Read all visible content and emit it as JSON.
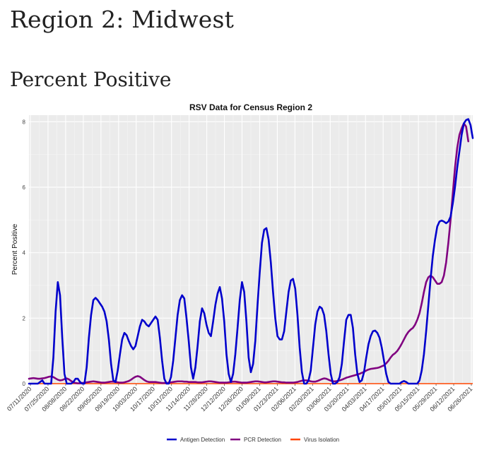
{
  "page": {
    "heading": "Region 2: Midwest",
    "subheading": "Percent Positive"
  },
  "chart_data": {
    "type": "line",
    "title": "RSV Data for Census Region 2",
    "xlabel": "",
    "ylabel": "Percent Positive",
    "ylim": [
      0,
      8.2
    ],
    "yticks": [
      0,
      2,
      4,
      6,
      8
    ],
    "grid": true,
    "legend_position": "bottom",
    "x_tick_labels": [
      "07/11/2020",
      "07/25/2020",
      "08/08/2020",
      "08/22/2020",
      "09/05/2020",
      "09/19/2020",
      "10/03/2020",
      "10/17/2020",
      "10/31/2020",
      "11/14/2020",
      "11/28/2020",
      "12/12/2020",
      "12/26/2020",
      "01/09/2021",
      "01/23/2021",
      "02/06/2021",
      "02/20/2021",
      "03/06/2021",
      "03/20/2021",
      "04/03/2021",
      "04/17/2021",
      "05/01/2021",
      "05/15/2021",
      "05/29/2021",
      "06/12/2021",
      "06/26/2021"
    ],
    "series": [
      {
        "name": "Antigen Detection",
        "color": "#0000cc",
        "values": [
          0,
          0,
          0,
          0,
          0,
          0.05,
          0.1,
          0,
          0,
          0,
          0,
          0.8,
          2.2,
          3.1,
          2.7,
          1.4,
          0.3,
          0,
          0,
          0,
          0.05,
          0.15,
          0.15,
          0.05,
          0,
          0,
          0.5,
          1.4,
          2.1,
          2.55,
          2.62,
          2.55,
          2.45,
          2.35,
          2.2,
          1.9,
          1.35,
          0.6,
          0.1,
          0.05,
          0.4,
          0.9,
          1.35,
          1.55,
          1.48,
          1.3,
          1.15,
          1.05,
          1.15,
          1.45,
          1.75,
          1.95,
          1.9,
          1.8,
          1.75,
          1.85,
          1.95,
          2.05,
          1.95,
          1.4,
          0.7,
          0.15,
          0,
          0,
          0.2,
          0.7,
          1.4,
          2.1,
          2.55,
          2.7,
          2.6,
          2.0,
          1.3,
          0.5,
          0.15,
          0.5,
          1.15,
          1.9,
          2.3,
          2.15,
          1.8,
          1.55,
          1.45,
          1.9,
          2.4,
          2.75,
          2.95,
          2.6,
          1.9,
          0.9,
          0.3,
          0.05,
          0.3,
          0.9,
          1.7,
          2.55,
          3.1,
          2.8,
          1.9,
          0.8,
          0.35,
          0.6,
          1.3,
          2.4,
          3.4,
          4.3,
          4.7,
          4.75,
          4.4,
          3.7,
          2.8,
          2.0,
          1.45,
          1.35,
          1.35,
          1.6,
          2.2,
          2.8,
          3.15,
          3.2,
          2.9,
          2.1,
          1.1,
          0.35,
          0,
          0,
          0.1,
          0.4,
          1.1,
          1.8,
          2.2,
          2.35,
          2.3,
          2.1,
          1.6,
          0.9,
          0.3,
          0,
          0,
          0.05,
          0.2,
          0.6,
          1.3,
          1.95,
          2.1,
          2.1,
          1.7,
          0.9,
          0.3,
          0.05,
          0.1,
          0.35,
          0.8,
          1.2,
          1.45,
          1.6,
          1.62,
          1.55,
          1.4,
          1.1,
          0.7,
          0.3,
          0.05,
          0,
          0,
          0,
          0,
          0,
          0.05,
          0.08,
          0.05,
          0,
          0,
          0,
          0,
          0,
          0.1,
          0.4,
          0.9,
          1.6,
          2.4,
          3.2,
          3.9,
          4.4,
          4.8,
          4.95,
          4.98,
          4.95,
          4.9,
          4.95,
          5.1,
          5.5,
          6.0,
          6.6,
          7.1,
          7.6,
          7.95,
          8.05,
          8.08,
          7.9,
          7.5
        ]
      },
      {
        "name": "PCR Detection",
        "color": "#800080",
        "values": [
          0.15,
          0.16,
          0.17,
          0.16,
          0.15,
          0.15,
          0.16,
          0.17,
          0.19,
          0.21,
          0.22,
          0.2,
          0.16,
          0.12,
          0.1,
          0.11,
          0.14,
          0.16,
          0.13,
          0.08,
          0.04,
          0.02,
          0.01,
          0.01,
          0.02,
          0.03,
          0.04,
          0.05,
          0.06,
          0.07,
          0.06,
          0.05,
          0.04,
          0.03,
          0.03,
          0.04,
          0.05,
          0.06,
          0.06,
          0.05,
          0.04,
          0.03,
          0.03,
          0.04,
          0.06,
          0.08,
          0.12,
          0.17,
          0.21,
          0.23,
          0.21,
          0.16,
          0.11,
          0.07,
          0.05,
          0.05,
          0.05,
          0.05,
          0.04,
          0.03,
          0.02,
          0.02,
          0.02,
          0.03,
          0.04,
          0.05,
          0.06,
          0.07,
          0.07,
          0.07,
          0.06,
          0.06,
          0.05,
          0.05,
          0.05,
          0.05,
          0.04,
          0.04,
          0.04,
          0.05,
          0.06,
          0.07,
          0.07,
          0.06,
          0.05,
          0.04,
          0.03,
          0.03,
          0.03,
          0.03,
          0.04,
          0.05,
          0.06,
          0.06,
          0.05,
          0.04,
          0.03,
          0.03,
          0.03,
          0.04,
          0.05,
          0.06,
          0.07,
          0.07,
          0.06,
          0.05,
          0.04,
          0.04,
          0.05,
          0.06,
          0.07,
          0.07,
          0.06,
          0.05,
          0.04,
          0.04,
          0.03,
          0.03,
          0.03,
          0.03,
          0.04,
          0.05,
          0.07,
          0.09,
          0.1,
          0.1,
          0.09,
          0.07,
          0.06,
          0.06,
          0.08,
          0.11,
          0.14,
          0.16,
          0.15,
          0.12,
          0.09,
          0.07,
          0.07,
          0.08,
          0.1,
          0.12,
          0.15,
          0.18,
          0.2,
          0.22,
          0.24,
          0.26,
          0.28,
          0.3,
          0.33,
          0.36,
          0.4,
          0.43,
          0.45,
          0.46,
          0.47,
          0.48,
          0.5,
          0.53,
          0.56,
          0.62,
          0.7,
          0.8,
          0.88,
          0.93,
          1.0,
          1.1,
          1.22,
          1.35,
          1.48,
          1.58,
          1.65,
          1.7,
          1.8,
          1.95,
          2.15,
          2.45,
          2.8,
          3.1,
          3.25,
          3.3,
          3.25,
          3.15,
          3.05,
          3.05,
          3.1,
          3.3,
          3.7,
          4.3,
          5.0,
          5.8,
          6.6,
          7.2,
          7.6,
          7.8,
          7.95,
          7.85,
          7.4
        ]
      },
      {
        "name": "Virus Isolation",
        "color": "#ff4500",
        "values": [
          0,
          0
        ]
      }
    ]
  }
}
